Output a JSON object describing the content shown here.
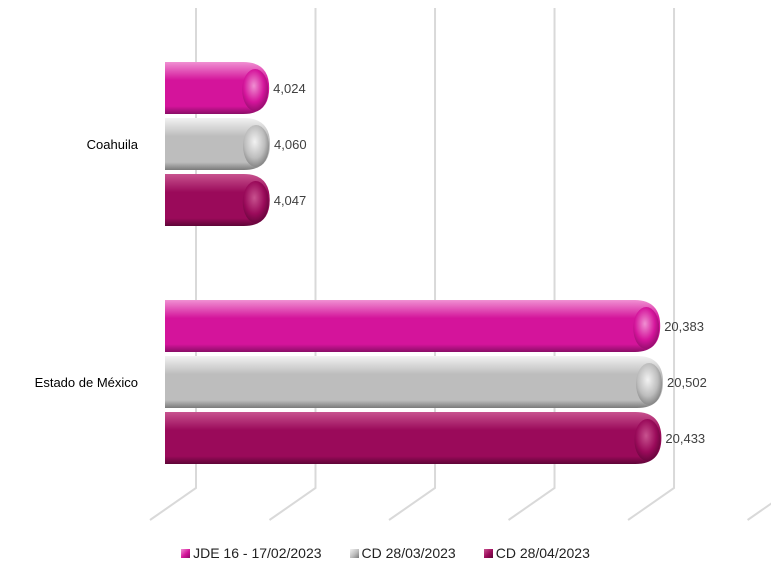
{
  "chart_data": {
    "type": "bar",
    "orientation": "horizontal",
    "style": "3d-cylinder",
    "categories": [
      "Coahuila",
      "Estado de México"
    ],
    "series": [
      {
        "name": "JDE 16 - 17/02/2023",
        "values": [
          4024,
          20383
        ],
        "labels": [
          "4,024",
          "20,383"
        ],
        "color": "#d4149b",
        "dark": "#8a0d66",
        "light": "#f090d2"
      },
      {
        "name": "CD 28/03/2023",
        "values": [
          4060,
          20502
        ],
        "labels": [
          "4,060",
          "20,502"
        ],
        "color": "#bdbdbd",
        "dark": "#7a7a7a",
        "light": "#f2f2f2"
      },
      {
        "name": "CD 28/04/2023",
        "values": [
          4047,
          20433
        ],
        "labels": [
          "4,047",
          "20,433"
        ],
        "color": "#9a0a5a",
        "dark": "#5e0537",
        "light": "#c8538f"
      }
    ],
    "xlim": [
      0,
      25000
    ],
    "grid": true,
    "legend_position": "bottom"
  }
}
